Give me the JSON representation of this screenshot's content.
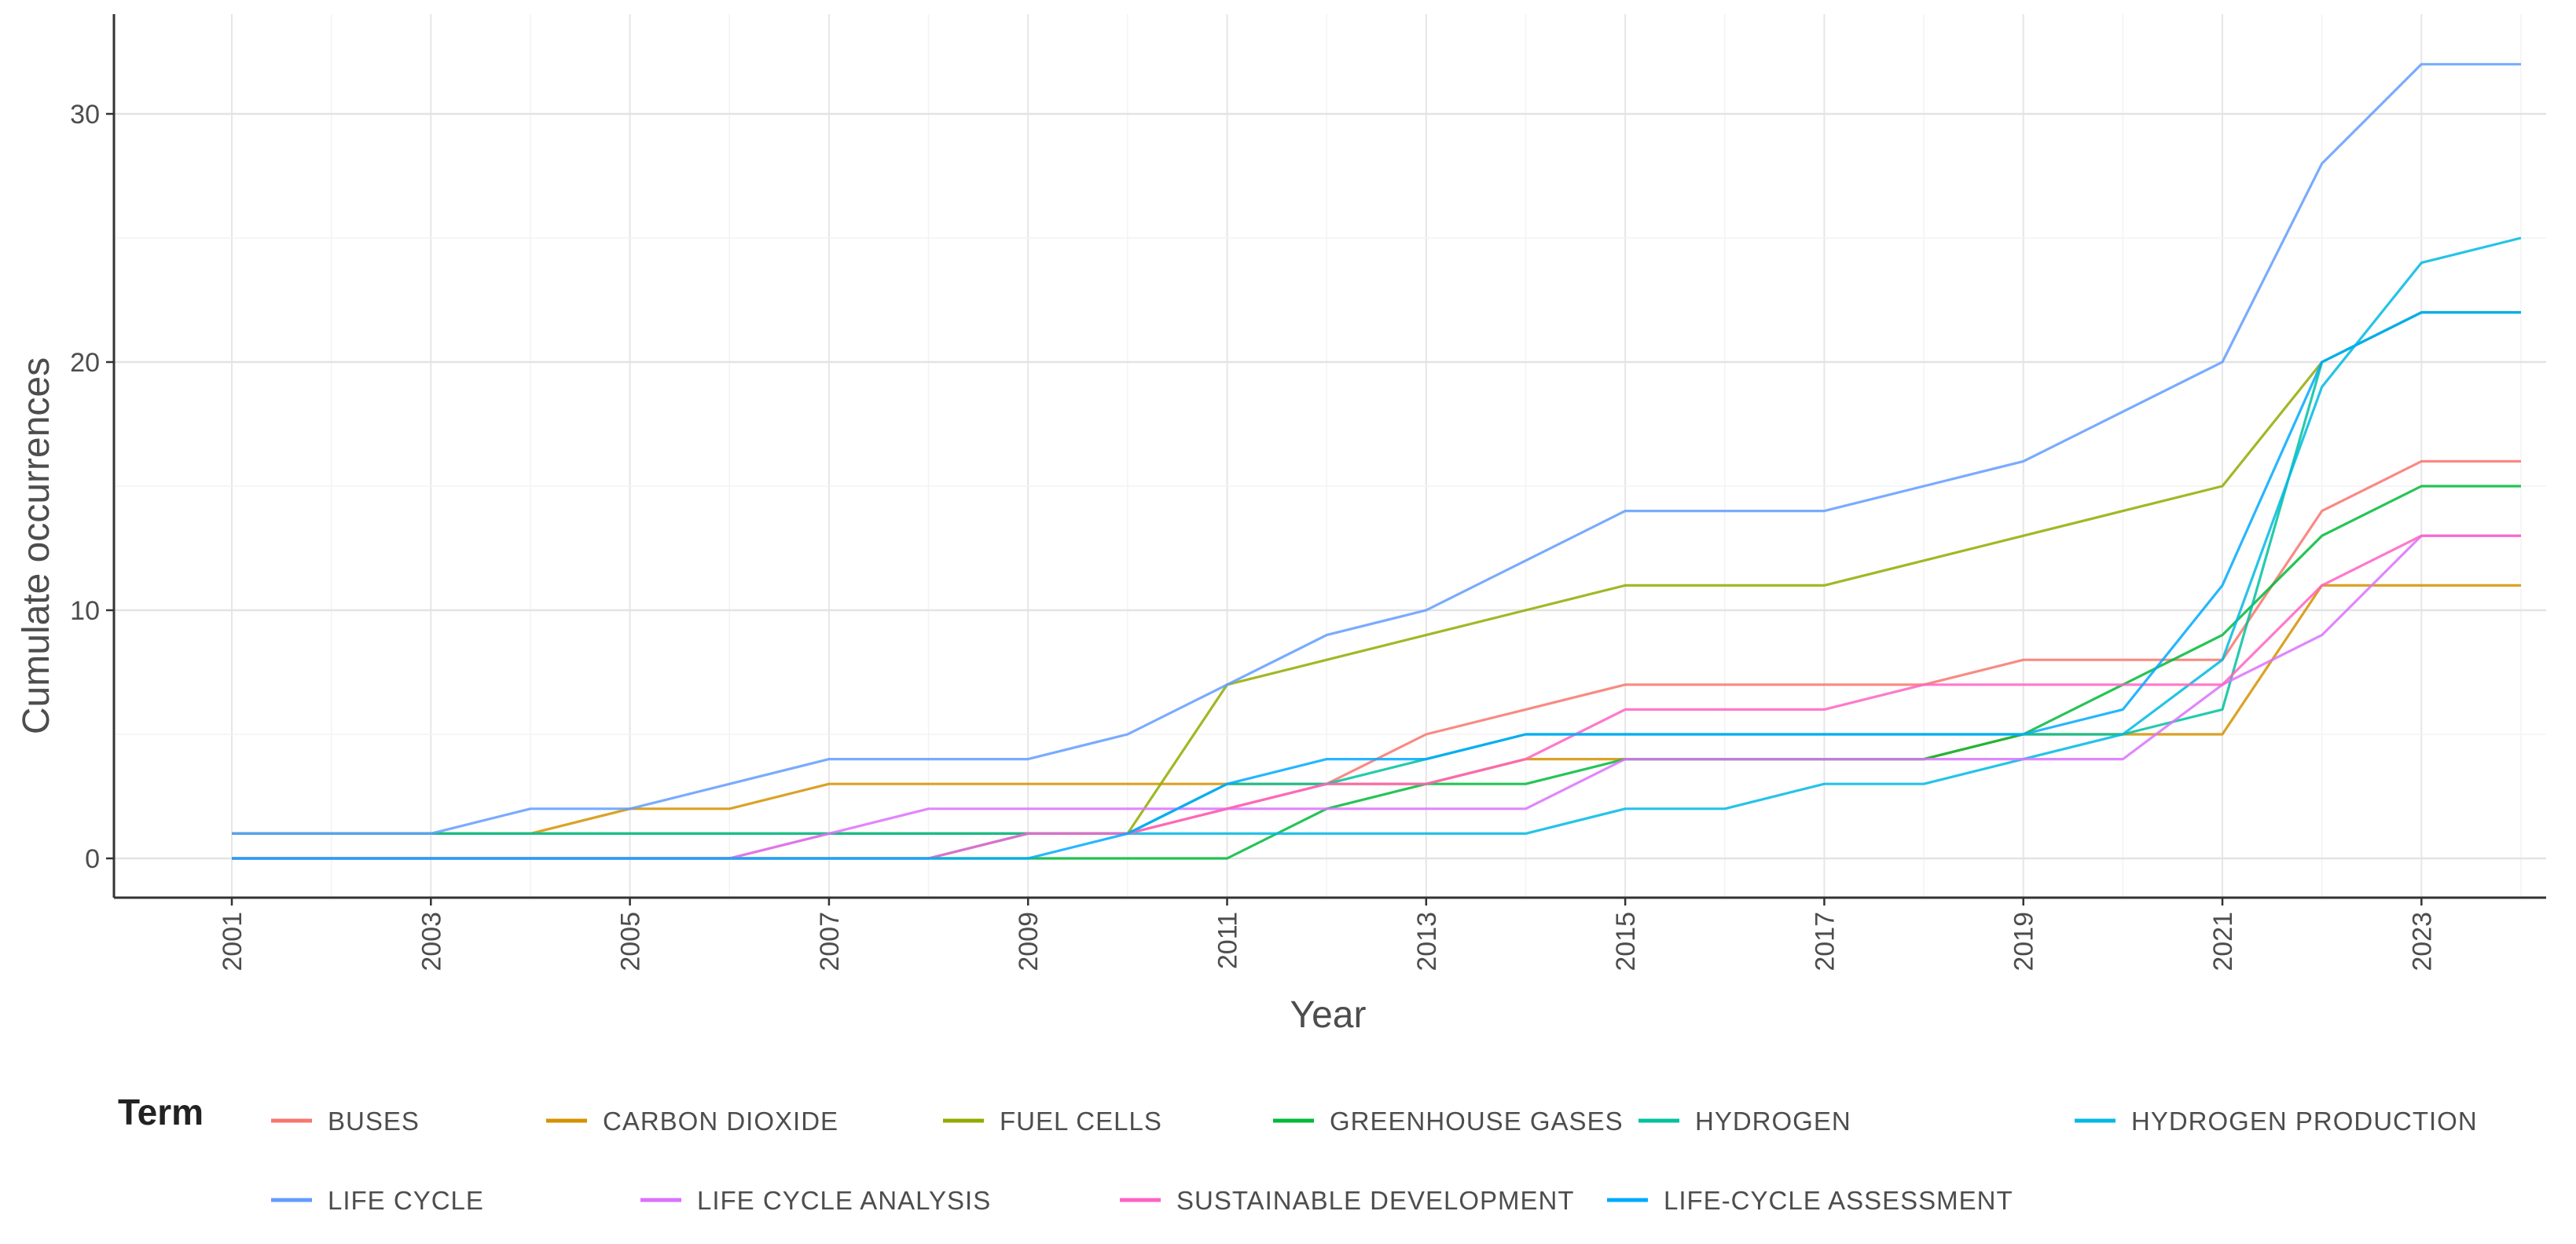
{
  "chart_data": {
    "type": "line",
    "title": "",
    "xlabel": "Year",
    "ylabel": "Cumulate occurrences",
    "xlim": [
      2001,
      2024
    ],
    "ylim": [
      -1.5,
      33.5
    ],
    "x_ticks": [
      "2001",
      "2003",
      "2005",
      "2007",
      "2009",
      "2011",
      "2013",
      "2015",
      "2017",
      "2019",
      "2021",
      "2023"
    ],
    "y_ticks": [
      "0",
      "10",
      "20",
      "30"
    ],
    "grid": true,
    "legend_title": "Term",
    "legend_position": "bottom",
    "x": [
      2001,
      2002,
      2003,
      2004,
      2005,
      2006,
      2007,
      2008,
      2009,
      2010,
      2011,
      2012,
      2013,
      2014,
      2015,
      2016,
      2017,
      2018,
      2019,
      2020,
      2021,
      2022,
      2023,
      2024
    ],
    "series": [
      {
        "name": "BUSES",
        "color": "#F8766D",
        "values": [
          0,
          0,
          0,
          0,
          0,
          0,
          1,
          1,
          1,
          1,
          2,
          3,
          5,
          6,
          7,
          7,
          7,
          7,
          8,
          8,
          8,
          14,
          16,
          16
        ]
      },
      {
        "name": "CARBON DIOXIDE",
        "color": "#D39200",
        "values": [
          1,
          1,
          1,
          1,
          2,
          2,
          3,
          3,
          3,
          3,
          3,
          3,
          3,
          4,
          4,
          4,
          4,
          4,
          5,
          5,
          5,
          11,
          11,
          11
        ]
      },
      {
        "name": "FUEL CELLS",
        "color": "#93AA00",
        "values": [
          1,
          1,
          1,
          1,
          1,
          1,
          1,
          1,
          1,
          1,
          7,
          8,
          9,
          10,
          11,
          11,
          11,
          12,
          13,
          14,
          15,
          20,
          22,
          22
        ]
      },
      {
        "name": "GREENHOUSE GASES",
        "color": "#00BA38",
        "values": [
          0,
          0,
          0,
          0,
          0,
          0,
          0,
          0,
          0,
          0,
          0,
          2,
          3,
          3,
          4,
          4,
          4,
          4,
          5,
          7,
          9,
          13,
          15,
          15
        ]
      },
      {
        "name": "HYDROGEN",
        "color": "#00C19F",
        "values": [
          1,
          1,
          1,
          1,
          1,
          1,
          1,
          1,
          1,
          1,
          3,
          3,
          4,
          5,
          5,
          5,
          5,
          5,
          5,
          5,
          6,
          20,
          22,
          22
        ]
      },
      {
        "name": "HYDROGEN PRODUCTION",
        "color": "#00B9E3",
        "values": [
          0,
          0,
          0,
          0,
          0,
          0,
          0,
          0,
          1,
          1,
          1,
          1,
          1,
          1,
          2,
          2,
          3,
          3,
          4,
          5,
          8,
          19,
          24,
          25
        ]
      },
      {
        "name": "LIFE CYCLE",
        "color": "#619CFF",
        "values": [
          1,
          1,
          1,
          2,
          2,
          3,
          4,
          4,
          4,
          5,
          7,
          9,
          10,
          12,
          14,
          14,
          14,
          15,
          16,
          18,
          20,
          28,
          32,
          32
        ]
      },
      {
        "name": "LIFE CYCLE ANALYSIS",
        "color": "#DB72FB",
        "values": [
          0,
          0,
          0,
          0,
          0,
          0,
          1,
          2,
          2,
          2,
          2,
          2,
          2,
          2,
          4,
          4,
          4,
          4,
          4,
          4,
          7,
          9,
          13,
          13
        ]
      },
      {
        "name": "SUSTAINABLE DEVELOPMENT",
        "color": "#FF61C3",
        "values": [
          0,
          0,
          0,
          0,
          0,
          0,
          0,
          0,
          1,
          1,
          2,
          3,
          3,
          4,
          6,
          6,
          6,
          7,
          7,
          7,
          7,
          11,
          13,
          13
        ]
      },
      {
        "name": "LIFE-CYCLE ASSESSMENT",
        "color": "#00A9FF",
        "values": [
          0,
          0,
          0,
          0,
          0,
          0,
          0,
          0,
          0,
          1,
          3,
          4,
          4,
          5,
          5,
          5,
          5,
          5,
          5,
          6,
          11,
          20,
          22,
          22
        ]
      }
    ]
  }
}
